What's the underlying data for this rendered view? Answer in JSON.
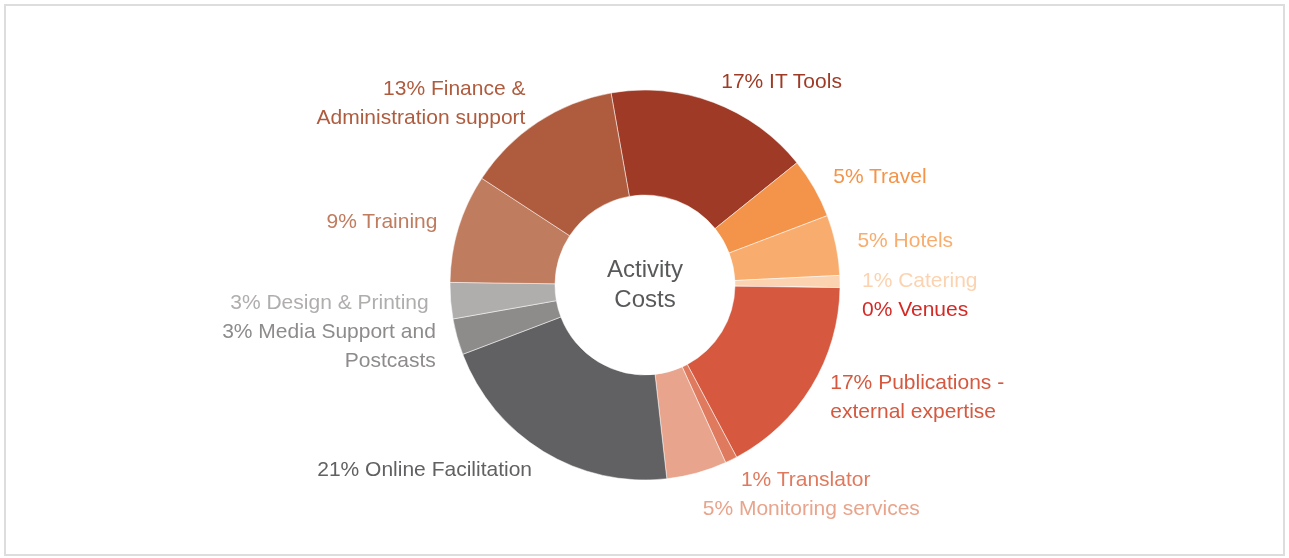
{
  "chart_data": {
    "type": "donut",
    "title": "Activity Costs",
    "categories": [
      "IT Tools",
      "Travel",
      "Hotels",
      "Catering",
      "Venues",
      "Publications - external expertise",
      "Translator",
      "Monitoring services",
      "Online Facilitation",
      "Media Support and Postcasts",
      "Design & Printing",
      "Training",
      "Finance & Administration support"
    ],
    "values": [
      17,
      5,
      5,
      1,
      0,
      17,
      1,
      5,
      21,
      3,
      3,
      9,
      13
    ],
    "value_labels": [
      "17%",
      "5%",
      "5%",
      "1%",
      "0%",
      "17%",
      "1%",
      "5%",
      "21%",
      "3%",
      "3%",
      "9%",
      "13%"
    ],
    "colors": [
      "#9e3a25",
      "#f4944a",
      "#f8ad6e",
      "#fcd3b0",
      "#d42a26",
      "#d5583f",
      "#e07a5f",
      "#e8a48c",
      "#616163",
      "#8e8b8b",
      "#b0adad",
      "#c07c5f",
      "#af5b3e"
    ]
  }
}
